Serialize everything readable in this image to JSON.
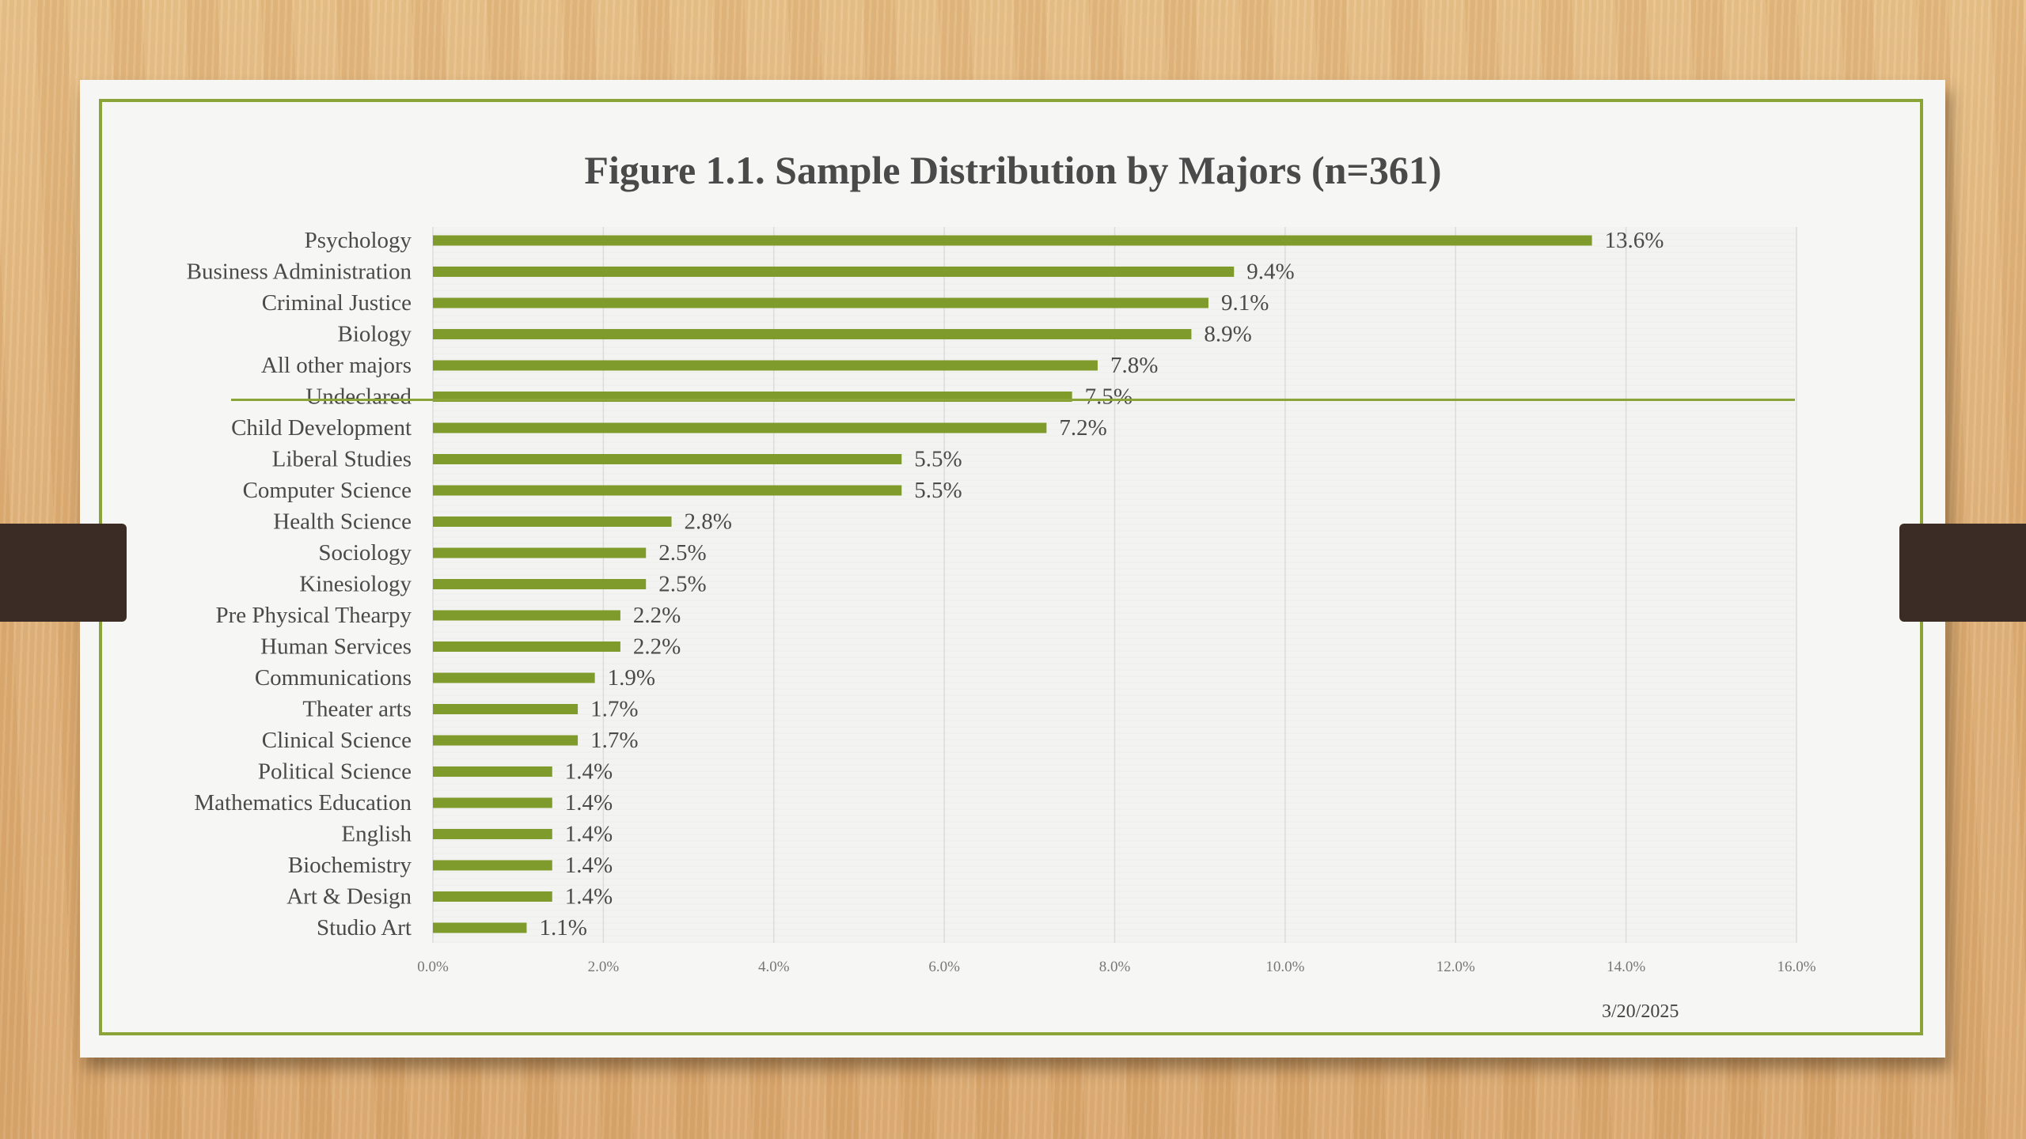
{
  "chart_data": {
    "type": "bar",
    "orientation": "horizontal",
    "title": "Figure 1.1. Sample Distribution by Majors (n=361)",
    "xlabel": "",
    "ylabel": "",
    "xlim": [
      0,
      16
    ],
    "grid": true,
    "x_ticks": [
      "0.0%",
      "2.0%",
      "4.0%",
      "6.0%",
      "8.0%",
      "10.0%",
      "12.0%",
      "14.0%",
      "16.0%"
    ],
    "categories": [
      "Psychology",
      "Business Administration",
      "Criminal Justice",
      "Biology",
      "All other majors",
      "Undeclared",
      "Child Development",
      "Liberal Studies",
      "Computer Science",
      "Health Science",
      "Sociology",
      "Kinesiology",
      "Pre Physical Thearpy",
      "Human Services",
      "Communications",
      "Theater arts",
      "Clinical Science",
      "Political Science",
      "Mathematics Education",
      "English",
      "Biochemistry",
      "Art & Design",
      "Studio Art"
    ],
    "values": [
      13.6,
      9.4,
      9.1,
      8.9,
      7.8,
      7.5,
      7.2,
      5.5,
      5.5,
      2.8,
      2.5,
      2.5,
      2.2,
      2.2,
      1.9,
      1.7,
      1.7,
      1.4,
      1.4,
      1.4,
      1.4,
      1.4,
      1.1
    ],
    "data_labels": [
      "13.6%",
      "9.4%",
      "9.1%",
      "8.9%",
      "7.8%",
      "7.5%",
      "7.2%",
      "5.5%",
      "5.5%",
      "2.8%",
      "2.5%",
      "2.5%",
      "2.2%",
      "2.2%",
      "1.9%",
      "1.7%",
      "1.7%",
      "1.4%",
      "1.4%",
      "1.4%",
      "1.4%",
      "1.4%",
      "1.1%"
    ],
    "bar_color": "#7f9b2b",
    "annotation_line_after": "Undeclared"
  },
  "footer": {
    "date": "3/20/2025"
  },
  "colors": {
    "frame": "#8aa437",
    "slide": "#f6f6f5",
    "tab": "#3b2d25",
    "text": "#4a4a4a"
  }
}
